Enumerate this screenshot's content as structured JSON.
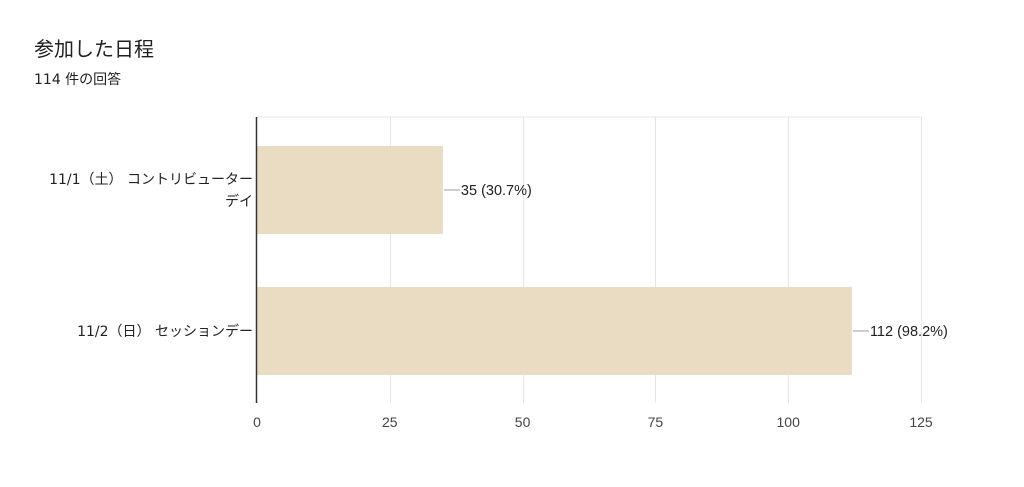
{
  "header": {
    "title": "参加した日程",
    "subtitle": "114 件の回答"
  },
  "colors": {
    "bar": "#eadcc3",
    "grid": "#e6e6e6",
    "axis": "#333333",
    "leader": "#9e9e9e"
  },
  "chart_data": {
    "type": "bar",
    "orientation": "horizontal",
    "categories": [
      [
        "11/1（土） コントリビューター",
        "デイ"
      ],
      [
        "11/2（日） セッションデー"
      ]
    ],
    "values": [
      35,
      112
    ],
    "data_labels": [
      "35 (30.7%)",
      "112 (98.2%)"
    ],
    "xlim": [
      0,
      125
    ],
    "xticks": [
      0,
      25,
      50,
      75,
      100,
      125
    ],
    "grid": true,
    "legend": "none"
  }
}
